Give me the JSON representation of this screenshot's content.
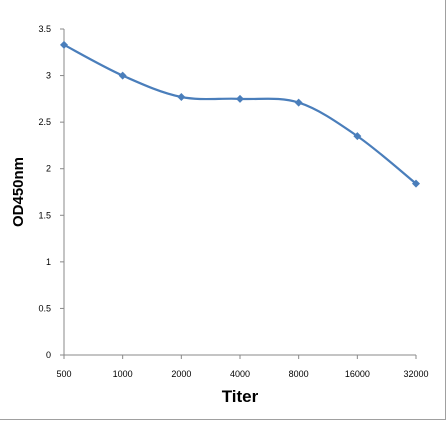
{
  "chart_data": {
    "type": "line",
    "title": "",
    "xlabel": "Titer",
    "ylabel": "OD450nm",
    "categories": [
      "500",
      "1000",
      "2000",
      "4000",
      "8000",
      "16000",
      "32000"
    ],
    "y_ticks": [
      "0",
      "0.5",
      "1",
      "1.5",
      "2",
      "2.5",
      "3",
      "3.5"
    ],
    "ylim": [
      0,
      3.5
    ],
    "grid": false,
    "legend": "none",
    "series": [
      {
        "values": [
          3.33,
          3.0,
          2.77,
          2.75,
          2.71,
          2.35,
          1.84
        ]
      }
    ],
    "line_color": "#4a7ebb",
    "marker": "diamond"
  }
}
